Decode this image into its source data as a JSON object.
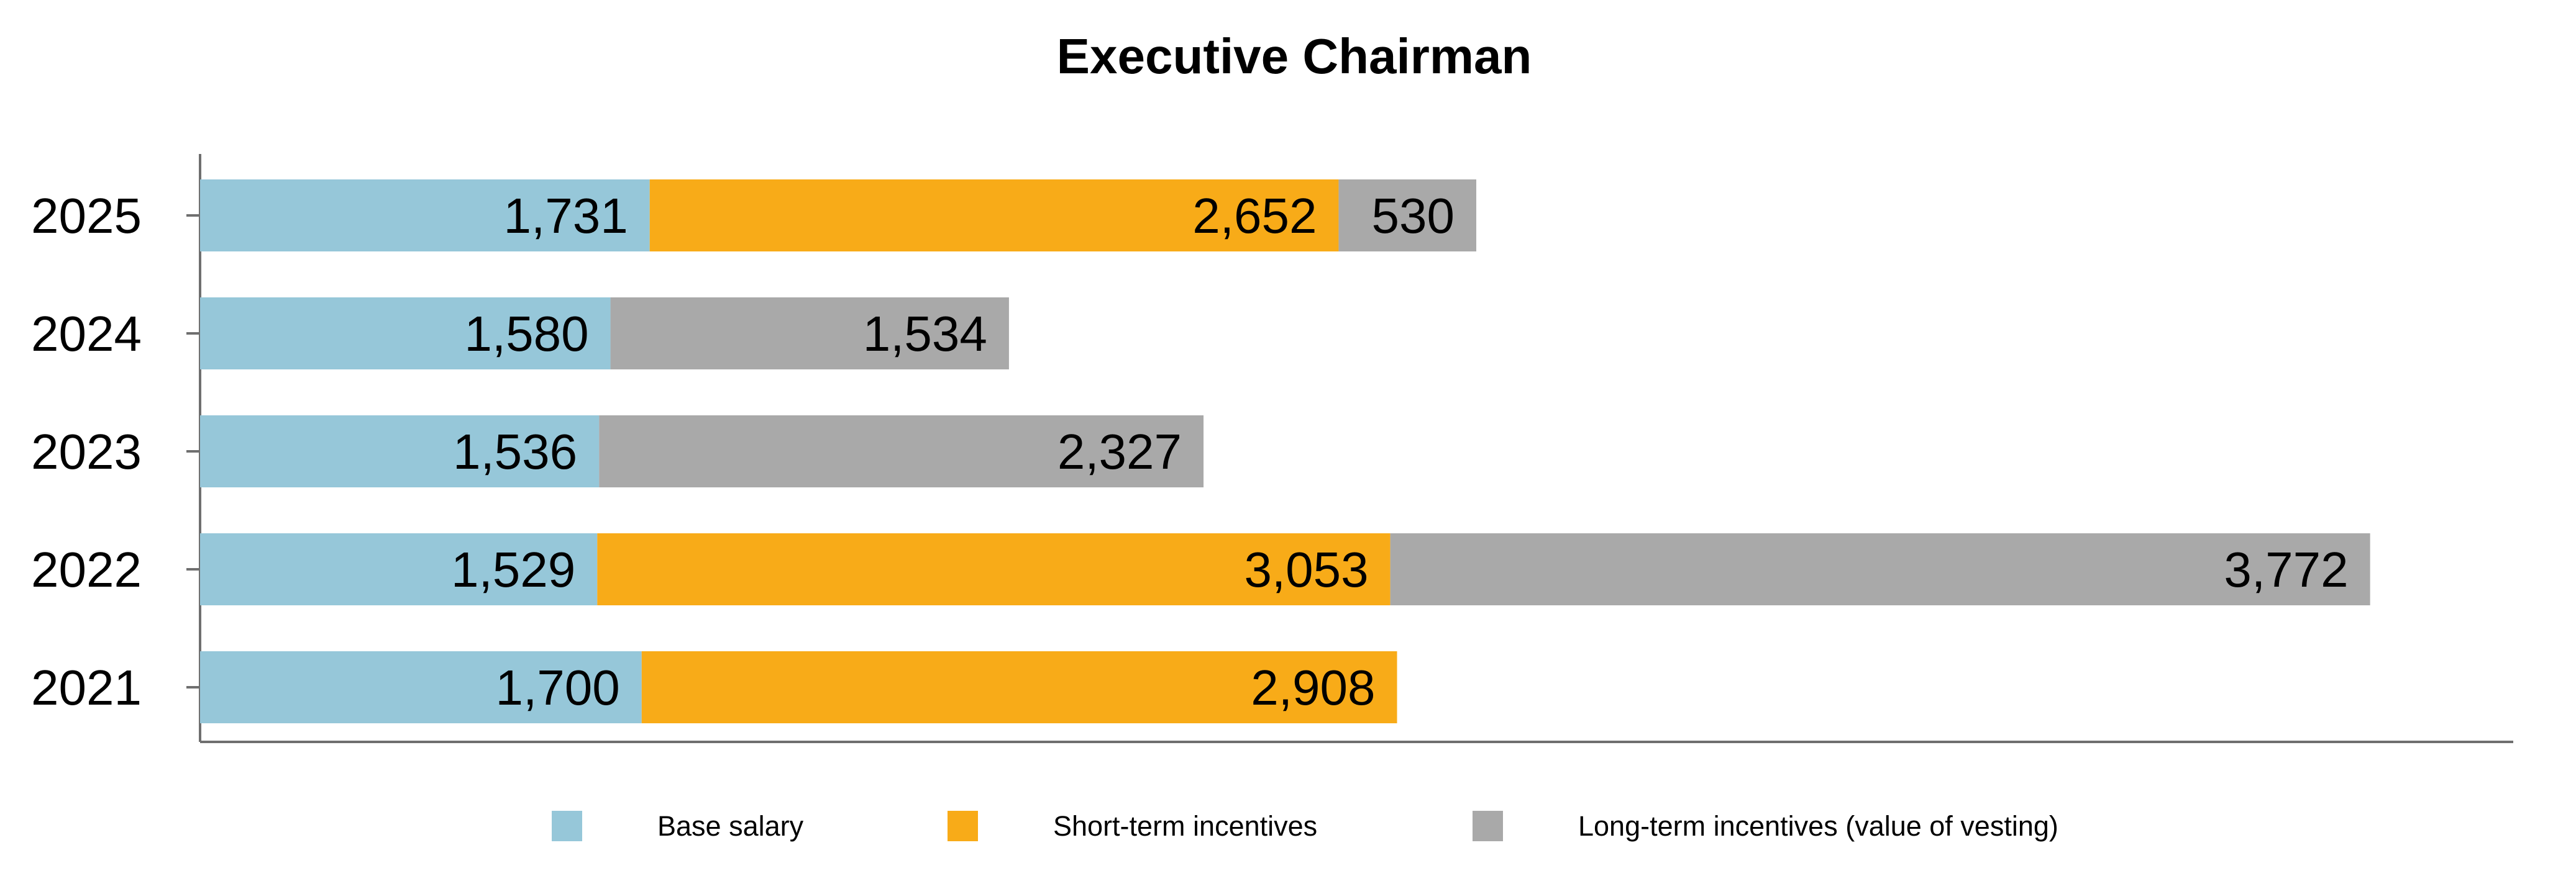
{
  "chart_data": {
    "type": "bar",
    "orientation": "horizontal",
    "stacked": true,
    "title": "Executive Chairman",
    "xlabel": "",
    "ylabel": "",
    "categories": [
      "2025",
      "2024",
      "2023",
      "2022",
      "2021"
    ],
    "series": [
      {
        "name": "Base salary",
        "color": "#96c7d9",
        "values": [
          1731,
          1580,
          1536,
          1529,
          1700
        ]
      },
      {
        "name": "Short-term incentives",
        "color": "#f8ab18",
        "values": [
          2652,
          null,
          null,
          3053,
          2908
        ]
      },
      {
        "name": "Long-term incentives (value of vesting)",
        "color": "#a9a9a9",
        "values": [
          530,
          1534,
          2327,
          3772,
          null
        ]
      }
    ],
    "data_labels": [
      [
        "1,731",
        "1,580",
        "1,536",
        "1,529",
        "1,700"
      ],
      [
        "2,652",
        null,
        null,
        "3,053",
        "2,908"
      ],
      [
        "530",
        "1,534",
        "2,327",
        "3,772",
        null
      ]
    ],
    "xlim": [
      0,
      8905
    ],
    "grid": false,
    "legend_position": "bottom"
  }
}
